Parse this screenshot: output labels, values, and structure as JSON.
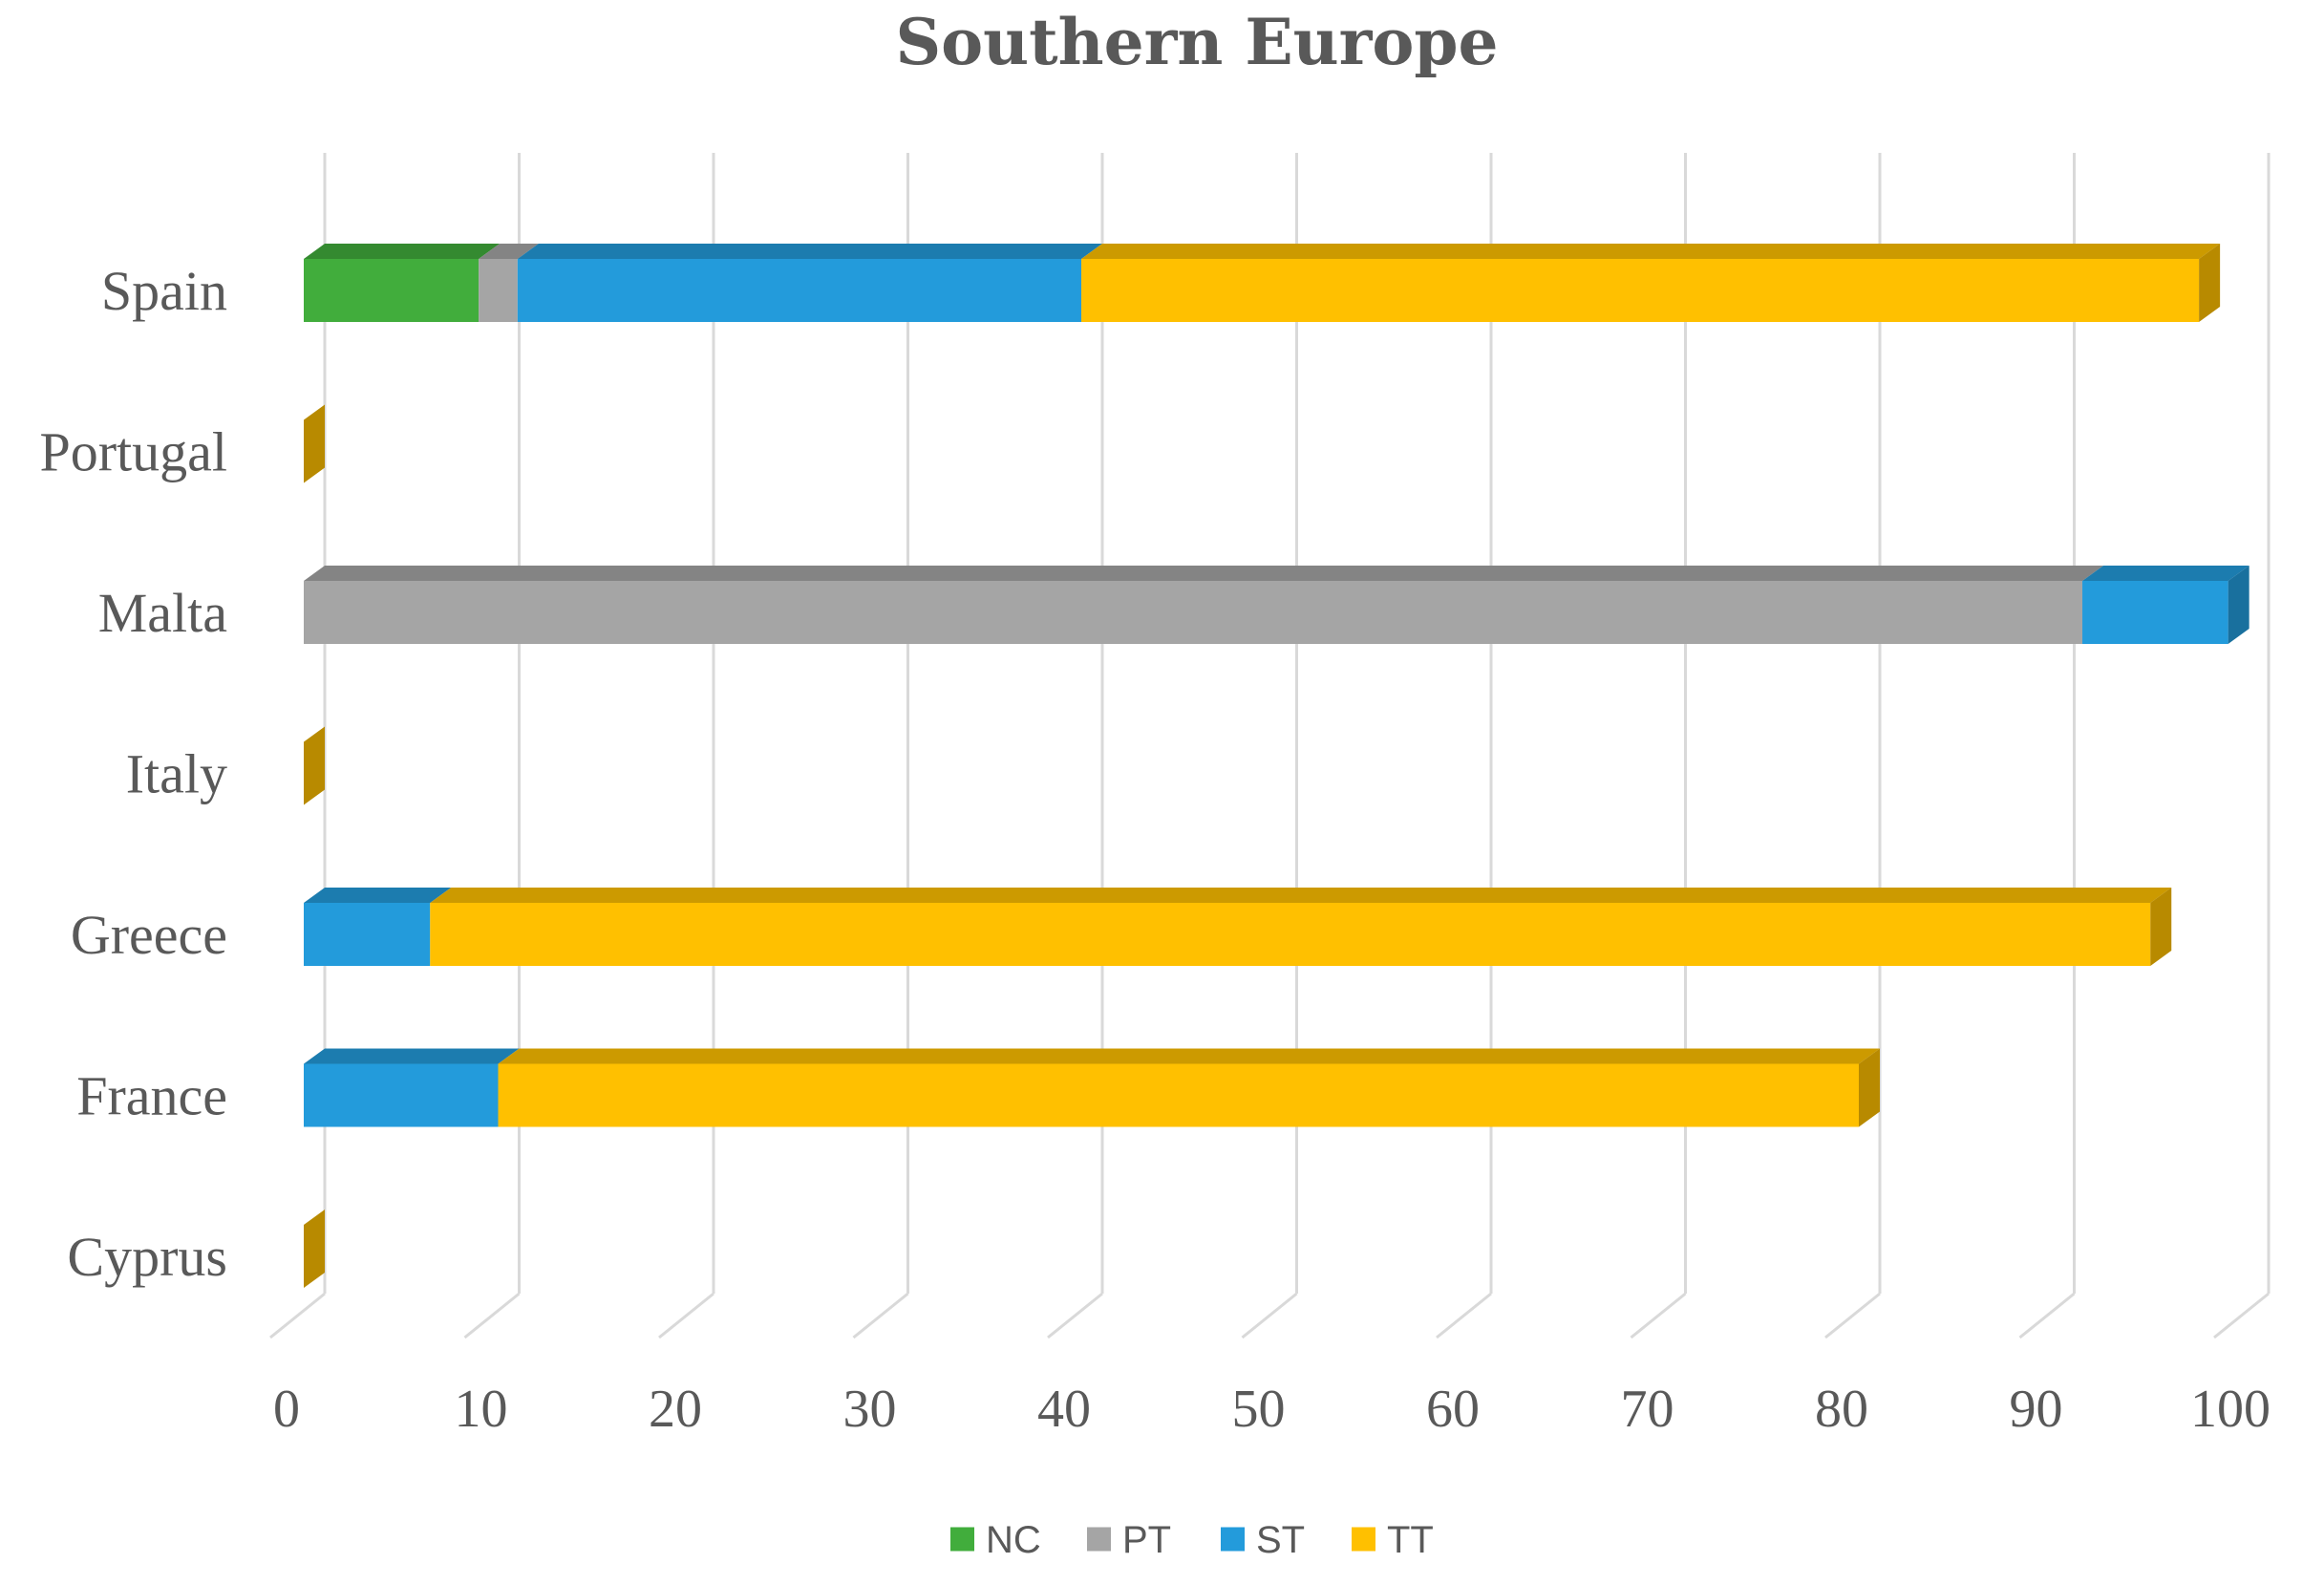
{
  "chart_data": {
    "type": "bar",
    "orientation": "horizontal",
    "stacked": true,
    "style": "3d",
    "title": "Southern Europe",
    "categories": [
      "Spain",
      "Portugal",
      "Malta",
      "Italy",
      "Greece",
      "France",
      "Cyprus"
    ],
    "series": [
      {
        "name": "NC",
        "color": "#41ad3c",
        "values": [
          9,
          0,
          0,
          0,
          0,
          0,
          0
        ]
      },
      {
        "name": "PT",
        "color": "#a5a5a5",
        "values": [
          2,
          0,
          91.5,
          0,
          0,
          0,
          0
        ]
      },
      {
        "name": "ST",
        "color": "#239bdb",
        "values": [
          29,
          0,
          7.5,
          0,
          6.5,
          10,
          0
        ]
      },
      {
        "name": "TT",
        "color": "#ffc000",
        "values": [
          57.5,
          0,
          0,
          0,
          88.5,
          70,
          0
        ]
      }
    ],
    "xlim": [
      0,
      100
    ],
    "xticks": [
      "0",
      "10",
      "20",
      "30",
      "40",
      "50",
      "60",
      "70",
      "80",
      "90",
      "100"
    ],
    "grid": true,
    "legend": "bottom"
  }
}
